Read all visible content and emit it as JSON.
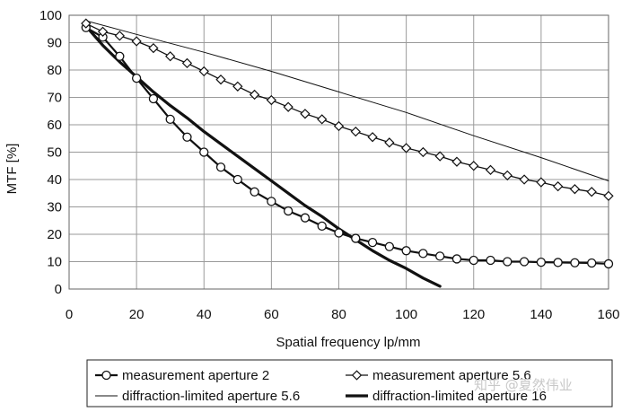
{
  "chart_data": {
    "type": "line",
    "title": "",
    "xlabel": "Spatial frequency  lp/mm",
    "ylabel": "MTF  [%]",
    "xlim": [
      0,
      160
    ],
    "ylim": [
      0,
      100
    ],
    "xticks": [
      0,
      20,
      40,
      60,
      80,
      100,
      120,
      140,
      160
    ],
    "yticks": [
      0,
      10,
      20,
      30,
      40,
      50,
      60,
      70,
      80,
      90,
      100
    ],
    "grid": true,
    "legend_position": "bottom",
    "series": [
      {
        "name": "measurement aperture 2",
        "marker": "circle",
        "line": "medium",
        "x": [
          5,
          10,
          15,
          20,
          25,
          30,
          35,
          40,
          45,
          50,
          55,
          60,
          65,
          70,
          75,
          80,
          85,
          90,
          95,
          100,
          105,
          110,
          115,
          120,
          125,
          130,
          135,
          140,
          145,
          150,
          155,
          160
        ],
        "y": [
          95.5,
          92,
          85,
          77,
          69.5,
          62,
          55.5,
          50,
          44.5,
          40,
          35.5,
          32,
          28.5,
          26,
          23,
          20.5,
          18.5,
          17,
          15.5,
          14,
          13,
          12,
          11,
          10.5,
          10.5,
          10,
          10,
          9.8,
          9.7,
          9.6,
          9.5,
          9.2
        ]
      },
      {
        "name": "measurement aperture 5.6",
        "marker": "diamond",
        "line": "thin",
        "x": [
          5,
          10,
          15,
          20,
          25,
          30,
          35,
          40,
          45,
          50,
          55,
          60,
          65,
          70,
          75,
          80,
          85,
          90,
          95,
          100,
          105,
          110,
          115,
          120,
          125,
          130,
          135,
          140,
          145,
          150,
          155,
          160
        ],
        "y": [
          97,
          94,
          92.5,
          90.5,
          88,
          85,
          82.5,
          79.5,
          76.5,
          74,
          71,
          69,
          66.5,
          64,
          62,
          59.5,
          57.5,
          55.5,
          53.5,
          51.5,
          50,
          48.5,
          46.5,
          45,
          43.5,
          41.5,
          40,
          39,
          37.5,
          36.5,
          35.5,
          34
        ]
      },
      {
        "name": "diffraction-limited aperture 5.6",
        "marker": "none",
        "line": "hairline",
        "x": [
          5,
          20,
          40,
          60,
          80,
          100,
          120,
          140,
          160
        ],
        "y": [
          98,
          93,
          86.5,
          79.5,
          72,
          64.5,
          56,
          48,
          39.5
        ]
      },
      {
        "name": "diffraction-limited aperture 16",
        "marker": "none",
        "line": "thick",
        "x": [
          5,
          10,
          15,
          20,
          25,
          30,
          35,
          40,
          45,
          50,
          55,
          60,
          65,
          70,
          75,
          80,
          85,
          90,
          95,
          100,
          105,
          110
        ],
        "y": [
          96,
          89,
          83,
          77.5,
          72,
          67,
          62.5,
          57.5,
          53,
          48.5,
          44,
          39.5,
          35,
          30.5,
          26.5,
          22,
          18,
          14,
          10.5,
          7.5,
          4,
          1
        ]
      }
    ],
    "watermark": "知乎 @夏然伟业"
  }
}
